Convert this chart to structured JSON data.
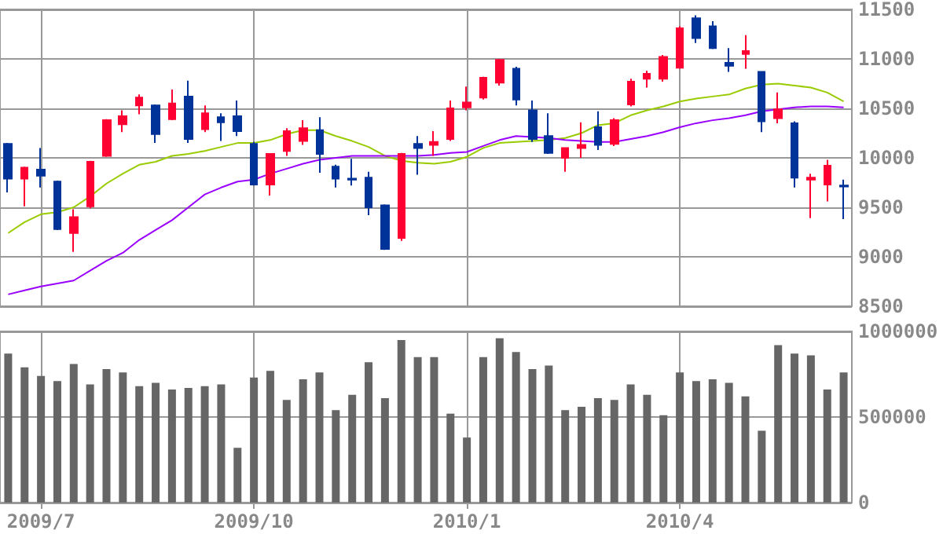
{
  "chart_data": [
    {
      "type": "candlestick",
      "categories": [
        null,
        null,
        "2009/7",
        null,
        null,
        null,
        null,
        null,
        null,
        null,
        null,
        null,
        null,
        null,
        null,
        "2009/10",
        null,
        null,
        null,
        null,
        null,
        null,
        null,
        null,
        null,
        null,
        null,
        null,
        "2010/1",
        null,
        null,
        null,
        null,
        null,
        null,
        null,
        null,
        null,
        null,
        null,
        null,
        "2010/4",
        null,
        null,
        null,
        null,
        null,
        null,
        null,
        null,
        null,
        null
      ],
      "ohlc": [
        [
          10140,
          10150,
          9650,
          9790
        ],
        [
          9790,
          9910,
          9510,
          9900
        ],
        [
          9880,
          10100,
          9700,
          9820
        ],
        [
          9760,
          9770,
          9270,
          9280
        ],
        [
          9240,
          9480,
          9050,
          9400
        ],
        [
          9510,
          9970,
          9490,
          9960
        ],
        [
          10020,
          10390,
          10010,
          10380
        ],
        [
          10340,
          10480,
          10260,
          10420
        ],
        [
          10530,
          10640,
          10440,
          10610
        ],
        [
          10530,
          10540,
          10150,
          10240
        ],
        [
          10390,
          10690,
          10380,
          10550
        ],
        [
          10620,
          10780,
          10150,
          10190
        ],
        [
          10290,
          10530,
          10260,
          10450
        ],
        [
          10410,
          10450,
          10170,
          10360
        ],
        [
          10420,
          10580,
          10220,
          10270
        ],
        [
          10140,
          10160,
          9720,
          9730
        ],
        [
          9730,
          10040,
          9620,
          10040
        ],
        [
          10070,
          10300,
          10020,
          10270
        ],
        [
          10170,
          10380,
          10130,
          10300
        ],
        [
          10280,
          10410,
          9850,
          10040
        ],
        [
          9910,
          9930,
          9700,
          9790
        ],
        [
          9790,
          9990,
          9720,
          9780
        ],
        [
          9800,
          9860,
          9420,
          9500
        ],
        [
          9520,
          9530,
          9070,
          9080
        ],
        [
          9190,
          10050,
          9160,
          10040
        ],
        [
          10140,
          10220,
          9830,
          10100
        ],
        [
          10130,
          10270,
          10020,
          10160
        ],
        [
          10190,
          10580,
          10170,
          10500
        ],
        [
          10510,
          10720,
          10480,
          10560
        ],
        [
          10610,
          10820,
          10590,
          10810
        ],
        [
          10760,
          11000,
          10730,
          10990
        ],
        [
          10900,
          10920,
          10530,
          10590
        ],
        [
          10480,
          10580,
          10160,
          10190
        ],
        [
          10220,
          10450,
          10040,
          10050
        ],
        [
          10000,
          10100,
          9860,
          10100
        ],
        [
          10100,
          10360,
          10000,
          10130
        ],
        [
          10310,
          10470,
          10080,
          10130
        ],
        [
          10140,
          10400,
          10120,
          10380
        ],
        [
          10540,
          10800,
          10520,
          10770
        ],
        [
          10800,
          10880,
          10710,
          10850
        ],
        [
          10800,
          11040,
          10770,
          11020
        ],
        [
          10910,
          11330,
          10900,
          11310
        ],
        [
          11410,
          11440,
          11160,
          11210
        ],
        [
          11330,
          11380,
          11100,
          11110
        ],
        [
          10960,
          11110,
          10870,
          10930
        ],
        [
          11050,
          11240,
          10900,
          11080
        ],
        [
          10870,
          10870,
          10260,
          10370
        ],
        [
          10400,
          10660,
          10350,
          10490
        ],
        [
          10350,
          10370,
          9700,
          9800
        ],
        [
          9780,
          9840,
          9390,
          9800
        ],
        [
          9730,
          9980,
          9560,
          9920
        ],
        [
          9720,
          9780,
          9380,
          9710
        ]
      ],
      "colors": [
        "#003399",
        "#ff0033",
        "#003399",
        "#003399",
        "#ff0033",
        "#ff0033",
        "#ff0033",
        "#ff0033",
        "#ff0033",
        "#003399",
        "#ff0033",
        "#003399",
        "#ff0033",
        "#003399",
        "#003399",
        "#003399",
        "#ff0033",
        "#ff0033",
        "#ff0033",
        "#003399",
        "#003399",
        "#003399",
        "#003399",
        "#003399",
        "#ff0033",
        "#003399",
        "#ff0033",
        "#ff0033",
        "#ff0033",
        "#ff0033",
        "#ff0033",
        "#003399",
        "#003399",
        "#003399",
        "#ff0033",
        "#ff0033",
        "#003399",
        "#ff0033",
        "#ff0033",
        "#ff0033",
        "#ff0033",
        "#ff0033",
        "#003399",
        "#003399",
        "#003399",
        "#ff0033",
        "#003399",
        "#ff0033",
        "#003399",
        "#ff0033",
        "#ff0033",
        "#003399"
      ],
      "series": [
        {
          "type": "line",
          "color": "#99cc00",
          "values": [
            9240,
            9350,
            9430,
            9450,
            9500,
            9610,
            9740,
            9840,
            9930,
            9960,
            10020,
            10040,
            10070,
            10110,
            10150,
            10150,
            10180,
            10240,
            10280,
            10280,
            10220,
            10170,
            10110,
            10020,
            9970,
            9950,
            9940,
            9960,
            10010,
            10100,
            10150,
            10160,
            10170,
            10180,
            10200,
            10250,
            10330,
            10350,
            10430,
            10480,
            10520,
            10570,
            10600,
            10620,
            10640,
            10700,
            10740,
            10750,
            10730,
            10710,
            10660,
            10570
          ]
        },
        {
          "type": "line",
          "color": "#9900ff",
          "values": [
            8620,
            8660,
            8700,
            8730,
            8760,
            8860,
            8960,
            9040,
            9170,
            9270,
            9370,
            9500,
            9630,
            9700,
            9760,
            9780,
            9840,
            9890,
            9940,
            9980,
            10000,
            10020,
            10020,
            10020,
            10020,
            10020,
            10030,
            10050,
            10060,
            10120,
            10180,
            10220,
            10210,
            10200,
            10180,
            10170,
            10160,
            10160,
            10190,
            10220,
            10260,
            10310,
            10350,
            10380,
            10400,
            10430,
            10470,
            10490,
            10510,
            10520,
            10520,
            10510
          ]
        }
      ],
      "ylim": [
        8500,
        11500
      ],
      "yticks": [
        8500,
        9000,
        9500,
        10000,
        10500,
        11000,
        11500
      ],
      "grid": true,
      "tick_labels": "y"
    },
    {
      "type": "bar",
      "categories": [
        null,
        null,
        "2009/7",
        null,
        null,
        null,
        null,
        null,
        null,
        null,
        null,
        null,
        null,
        null,
        null,
        "2009/10",
        null,
        null,
        null,
        null,
        null,
        null,
        null,
        null,
        null,
        null,
        null,
        null,
        "2010/1",
        null,
        null,
        null,
        null,
        null,
        null,
        null,
        null,
        null,
        null,
        null,
        null,
        "2010/4",
        null,
        null,
        null,
        null,
        null,
        null,
        null,
        null,
        null,
        null
      ],
      "values": [
        870000,
        790000,
        740000,
        710000,
        810000,
        690000,
        780000,
        760000,
        680000,
        700000,
        660000,
        670000,
        680000,
        690000,
        320000,
        730000,
        770000,
        600000,
        720000,
        760000,
        540000,
        630000,
        820000,
        610000,
        950000,
        850000,
        850000,
        520000,
        380000,
        850000,
        960000,
        880000,
        780000,
        800000,
        540000,
        560000,
        610000,
        600000,
        690000,
        630000,
        510000,
        760000,
        710000,
        720000,
        700000,
        620000,
        420000,
        920000,
        870000,
        860000,
        660000,
        760000
      ],
      "color": "#666666",
      "ylim": [
        0,
        1000000
      ],
      "yticks": [
        0,
        500000,
        1000000
      ],
      "grid": true
    }
  ]
}
